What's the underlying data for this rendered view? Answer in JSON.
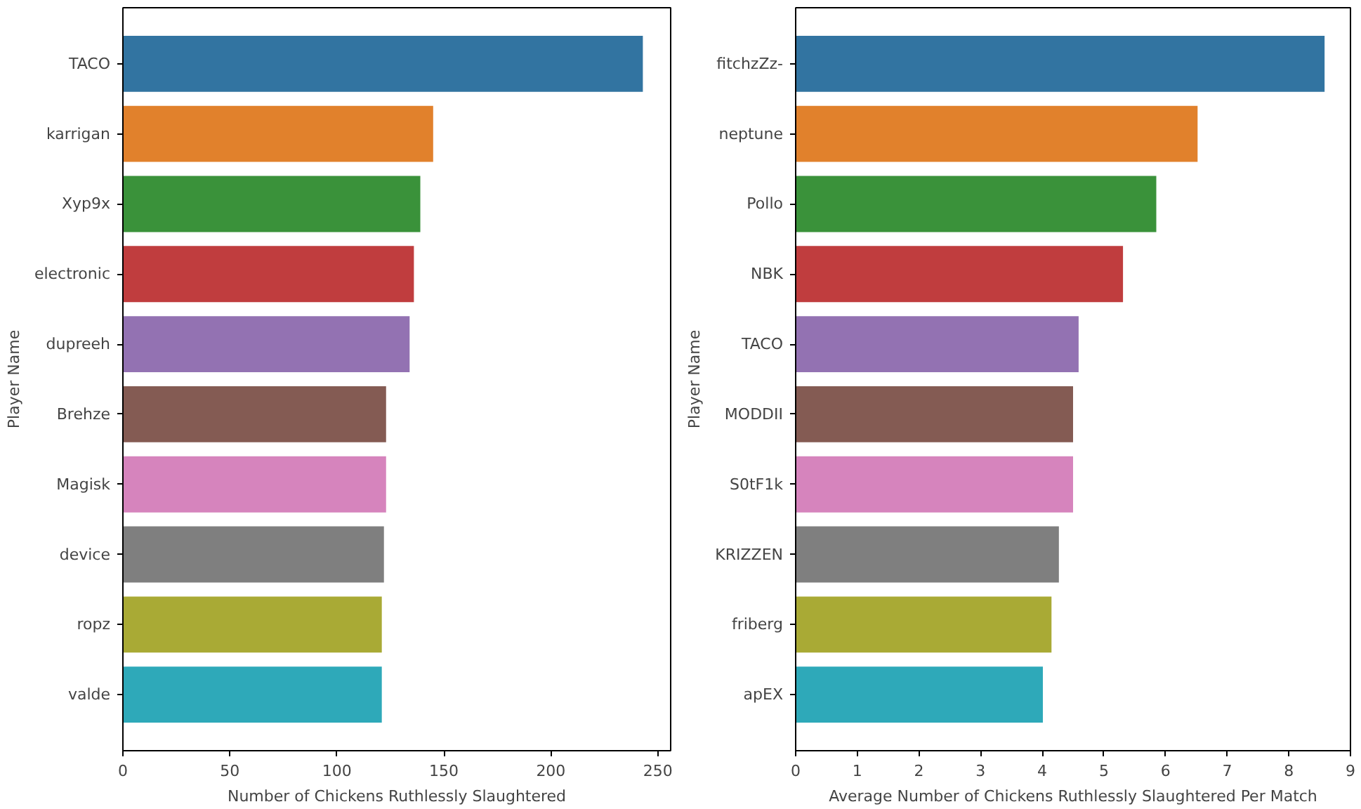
{
  "chart_data": [
    {
      "type": "bar",
      "orientation": "horizontal",
      "xlabel": "Number of Chickens Ruthlessly Slaughtered",
      "ylabel": "Player Name",
      "categories": [
        "TACO",
        "karrigan",
        "Xyp9x",
        "electronic",
        "dupreeh",
        "Brehze",
        "Magisk",
        "device",
        "ropz",
        "valde"
      ],
      "values": [
        243,
        145,
        139,
        136,
        134,
        123,
        123,
        122,
        121,
        121
      ],
      "colors": [
        "#3274a1",
        "#e1812c",
        "#3a923a",
        "#c03d3e",
        "#9372b2",
        "#845b53",
        "#d684bd",
        "#7f7f7f",
        "#a9aa35",
        "#2ea9b9"
      ],
      "xlim": [
        0,
        256
      ],
      "xticks": [
        0,
        50,
        100,
        150,
        200,
        250
      ],
      "grid": false
    },
    {
      "type": "bar",
      "orientation": "horizontal",
      "xlabel": "Average Number of Chickens Ruthlessly Slaughtered Per Match",
      "ylabel": "Player Name",
      "categories": [
        "fitchzZz-",
        "neptune",
        "Pollo",
        "NBK",
        "TACO",
        "MODDII",
        "S0tF1k",
        "KRIZZEN",
        "friberg",
        "apEX"
      ],
      "values": [
        8.58,
        6.52,
        5.85,
        5.31,
        4.59,
        4.5,
        4.5,
        4.27,
        4.15,
        4.01
      ],
      "colors": [
        "#3274a1",
        "#e1812c",
        "#3a923a",
        "#c03d3e",
        "#9372b2",
        "#845b53",
        "#d684bd",
        "#7f7f7f",
        "#a9aa35",
        "#2ea9b9"
      ],
      "xlim": [
        0,
        9
      ],
      "xticks": [
        0,
        1,
        2,
        3,
        4,
        5,
        6,
        7,
        8,
        9
      ],
      "grid": false
    }
  ]
}
